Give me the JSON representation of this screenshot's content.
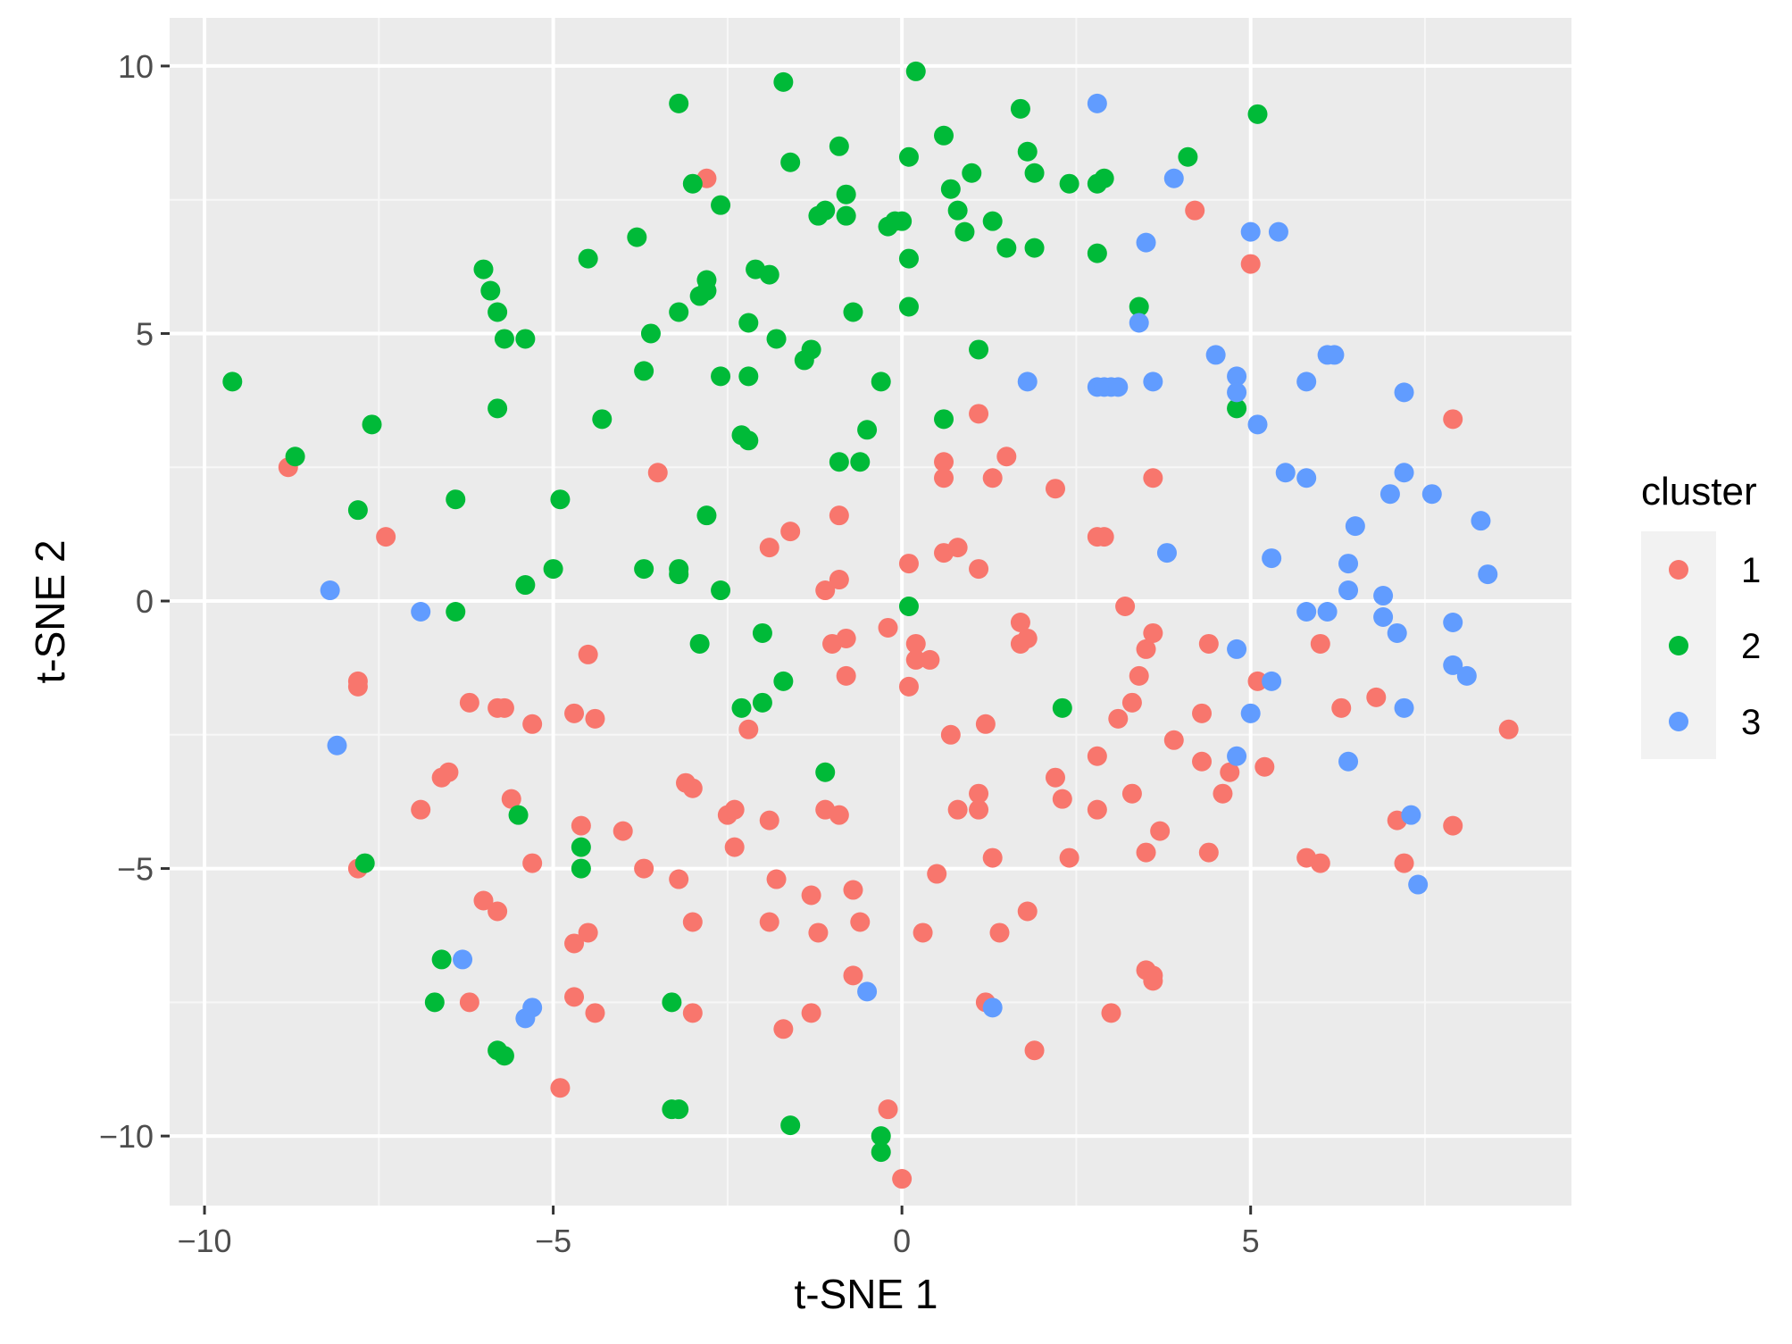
{
  "chart_data": {
    "type": "scatter",
    "title": "",
    "xlabel": "t-SNE 1",
    "ylabel": "t-SNE 2",
    "xlim": [
      -10.5,
      9.6
    ],
    "ylim": [
      -11.3,
      10.9
    ],
    "xticks": [
      -10,
      -5,
      0,
      5
    ],
    "yticks": [
      -10,
      -5,
      0,
      5,
      10
    ],
    "xtick_labels": [
      "−10",
      "−5",
      "0",
      "5"
    ],
    "ytick_labels": [
      "−10",
      "−5",
      "0",
      "5",
      "10"
    ],
    "grid": true,
    "panel_background": "#EBEBEB",
    "legend": {
      "title": "cluster",
      "position": "right",
      "entries": [
        "1",
        "2",
        "3"
      ]
    },
    "colors": {
      "1": "#F8766D",
      "2": "#00BA38",
      "3": "#619CFF"
    },
    "series": [
      {
        "name": "1",
        "color": "#F8766D",
        "points": [
          [
            -2.8,
            7.9
          ],
          [
            -8.8,
            2.5
          ],
          [
            -7.4,
            1.2
          ],
          [
            -7.8,
            -1.5
          ],
          [
            -7.8,
            -1.6
          ],
          [
            -6.9,
            -3.9
          ],
          [
            -6.6,
            -3.3
          ],
          [
            -6.5,
            -3.2
          ],
          [
            -7.8,
            -5.0
          ],
          [
            -6.2,
            -1.9
          ],
          [
            -5.8,
            -2.0
          ],
          [
            -5.7,
            -2.0
          ],
          [
            -5.3,
            -2.3
          ],
          [
            -5.6,
            -3.7
          ],
          [
            -6.0,
            -5.6
          ],
          [
            -5.8,
            -5.8
          ],
          [
            -5.3,
            -4.9
          ],
          [
            -6.2,
            -7.5
          ],
          [
            -4.9,
            -9.1
          ],
          [
            -4.7,
            -6.4
          ],
          [
            -4.7,
            -7.4
          ],
          [
            -4.7,
            -2.1
          ],
          [
            -4.6,
            -4.2
          ],
          [
            -4.5,
            -6.2
          ],
          [
            -4.4,
            -7.7
          ],
          [
            -4.4,
            -2.2
          ],
          [
            -4.5,
            -1.0
          ],
          [
            -4.0,
            -4.3
          ],
          [
            -3.7,
            -5.0
          ],
          [
            -3.5,
            2.4
          ],
          [
            -3.2,
            -5.2
          ],
          [
            -3.1,
            -3.4
          ],
          [
            -3.0,
            -3.5
          ],
          [
            -3.0,
            -6.0
          ],
          [
            -3.0,
            -7.7
          ],
          [
            -2.5,
            -4.0
          ],
          [
            -2.4,
            -3.9
          ],
          [
            -2.4,
            -4.6
          ],
          [
            -2.2,
            -2.4
          ],
          [
            -1.9,
            1.0
          ],
          [
            -1.6,
            1.3
          ],
          [
            -1.9,
            -4.1
          ],
          [
            -1.8,
            -5.2
          ],
          [
            -1.9,
            -6.0
          ],
          [
            -1.7,
            -8.0
          ],
          [
            -1.3,
            -5.5
          ],
          [
            -1.3,
            -7.7
          ],
          [
            -1.2,
            -6.2
          ],
          [
            -1.1,
            0.2
          ],
          [
            -0.9,
            0.4
          ],
          [
            -0.9,
            1.6
          ],
          [
            -1.0,
            -0.8
          ],
          [
            -0.8,
            -0.7
          ],
          [
            -0.8,
            -1.4
          ],
          [
            -1.1,
            -3.9
          ],
          [
            -0.9,
            -4.0
          ],
          [
            -0.7,
            -5.4
          ],
          [
            -0.6,
            -6.0
          ],
          [
            -0.7,
            -7.0
          ],
          [
            -0.2,
            -0.5
          ],
          [
            -0.2,
            -9.5
          ],
          [
            0.0,
            -10.8
          ],
          [
            0.1,
            0.7
          ],
          [
            0.2,
            -0.8
          ],
          [
            0.2,
            -1.1
          ],
          [
            0.4,
            -1.1
          ],
          [
            0.1,
            -1.6
          ],
          [
            0.6,
            2.3
          ],
          [
            0.6,
            2.6
          ],
          [
            0.6,
            0.9
          ],
          [
            0.8,
            1.0
          ],
          [
            0.7,
            -2.5
          ],
          [
            0.8,
            -3.9
          ],
          [
            0.5,
            -5.1
          ],
          [
            0.3,
            -6.2
          ],
          [
            1.1,
            3.5
          ],
          [
            1.3,
            2.3
          ],
          [
            1.5,
            2.7
          ],
          [
            1.1,
            0.6
          ],
          [
            1.2,
            -2.3
          ],
          [
            1.1,
            -3.6
          ],
          [
            1.1,
            -3.9
          ],
          [
            1.3,
            -4.8
          ],
          [
            1.4,
            -6.2
          ],
          [
            1.2,
            -7.5
          ],
          [
            1.7,
            -0.4
          ],
          [
            1.7,
            -0.8
          ],
          [
            1.8,
            -0.7
          ],
          [
            1.8,
            -5.8
          ],
          [
            1.9,
            -8.4
          ],
          [
            2.2,
            2.1
          ],
          [
            2.2,
            -3.3
          ],
          [
            2.3,
            -3.7
          ],
          [
            2.4,
            -4.8
          ],
          [
            2.8,
            1.2
          ],
          [
            2.9,
            1.2
          ],
          [
            2.8,
            -2.9
          ],
          [
            2.8,
            -3.9
          ],
          [
            3.0,
            -7.7
          ],
          [
            3.2,
            -0.1
          ],
          [
            3.1,
            -2.2
          ],
          [
            3.3,
            -1.9
          ],
          [
            3.3,
            -3.6
          ],
          [
            3.5,
            -0.9
          ],
          [
            3.6,
            -0.6
          ],
          [
            3.4,
            -1.4
          ],
          [
            3.5,
            -4.7
          ],
          [
            3.5,
            -6.9
          ],
          [
            3.6,
            -7.0
          ],
          [
            3.6,
            -7.1
          ],
          [
            3.6,
            2.3
          ],
          [
            3.7,
            -4.3
          ],
          [
            4.2,
            7.3
          ],
          [
            3.9,
            -2.6
          ],
          [
            4.3,
            -2.1
          ],
          [
            4.3,
            -3.0
          ],
          [
            4.4,
            -0.8
          ],
          [
            4.4,
            -4.7
          ],
          [
            4.7,
            -3.2
          ],
          [
            4.6,
            -3.6
          ],
          [
            5.0,
            6.3
          ],
          [
            5.1,
            -1.5
          ],
          [
            5.2,
            -3.1
          ],
          [
            6.0,
            -0.8
          ],
          [
            5.8,
            -4.8
          ],
          [
            6.0,
            -4.9
          ],
          [
            6.3,
            -2.0
          ],
          [
            6.8,
            -1.8
          ],
          [
            7.1,
            -4.1
          ],
          [
            7.2,
            -4.9
          ],
          [
            7.9,
            3.4
          ],
          [
            7.9,
            -4.2
          ],
          [
            8.7,
            -2.4
          ]
        ]
      },
      {
        "name": "2",
        "color": "#00BA38",
        "points": [
          [
            -9.6,
            4.1
          ],
          [
            -8.7,
            2.7
          ],
          [
            -7.6,
            3.3
          ],
          [
            -7.8,
            1.7
          ],
          [
            -6.4,
            1.9
          ],
          [
            -6.4,
            -0.2
          ],
          [
            -7.7,
            -4.9
          ],
          [
            -6.6,
            -6.7
          ],
          [
            -6.7,
            -7.5
          ],
          [
            -6.0,
            6.2
          ],
          [
            -5.9,
            5.8
          ],
          [
            -5.8,
            5.4
          ],
          [
            -5.7,
            4.9
          ],
          [
            -5.4,
            4.9
          ],
          [
            -5.8,
            3.6
          ],
          [
            -5.4,
            0.3
          ],
          [
            -5.5,
            -4.0
          ],
          [
            -5.8,
            -8.4
          ],
          [
            -5.7,
            -8.5
          ],
          [
            -4.5,
            6.4
          ],
          [
            -4.3,
            3.4
          ],
          [
            -4.9,
            1.9
          ],
          [
            -5.0,
            0.6
          ],
          [
            -4.6,
            -4.6
          ],
          [
            -4.6,
            -5.0
          ],
          [
            -3.8,
            6.8
          ],
          [
            -3.6,
            5.0
          ],
          [
            -3.7,
            4.3
          ],
          [
            -3.7,
            0.6
          ],
          [
            -3.2,
            9.3
          ],
          [
            -3.0,
            7.8
          ],
          [
            -3.2,
            5.4
          ],
          [
            -2.9,
            5.7
          ],
          [
            -2.8,
            5.8
          ],
          [
            -2.8,
            6.0
          ],
          [
            -2.6,
            7.4
          ],
          [
            -2.6,
            4.2
          ],
          [
            -3.2,
            0.6
          ],
          [
            -3.2,
            0.5
          ],
          [
            -2.8,
            1.6
          ],
          [
            -2.6,
            0.2
          ],
          [
            -2.3,
            3.1
          ],
          [
            -2.2,
            3.0
          ],
          [
            -2.9,
            -0.8
          ],
          [
            -3.3,
            -7.5
          ],
          [
            -3.3,
            -9.5
          ],
          [
            -3.2,
            -9.5
          ],
          [
            -2.1,
            6.2
          ],
          [
            -2.2,
            5.2
          ],
          [
            -2.2,
            4.2
          ],
          [
            -1.9,
            6.1
          ],
          [
            -1.8,
            4.9
          ],
          [
            -1.7,
            9.7
          ],
          [
            -1.6,
            8.2
          ],
          [
            -1.4,
            4.5
          ],
          [
            -1.3,
            4.7
          ],
          [
            -2.0,
            -0.6
          ],
          [
            -2.3,
            -2.0
          ],
          [
            -2.0,
            -1.9
          ],
          [
            -1.7,
            -1.5
          ],
          [
            -1.6,
            -9.8
          ],
          [
            -1.2,
            7.2
          ],
          [
            -1.1,
            7.3
          ],
          [
            -0.9,
            8.5
          ],
          [
            -0.8,
            7.6
          ],
          [
            -0.8,
            7.2
          ],
          [
            -0.7,
            5.4
          ],
          [
            -0.9,
            2.6
          ],
          [
            -0.5,
            3.2
          ],
          [
            -0.6,
            2.6
          ],
          [
            -1.1,
            -3.2
          ],
          [
            -0.2,
            7.0
          ],
          [
            -0.1,
            7.1
          ],
          [
            0.0,
            7.1
          ],
          [
            0.2,
            9.9
          ],
          [
            0.1,
            8.3
          ],
          [
            0.1,
            6.4
          ],
          [
            0.1,
            5.5
          ],
          [
            -0.3,
            4.1
          ],
          [
            0.1,
            -0.1
          ],
          [
            -0.3,
            -10.0
          ],
          [
            -0.3,
            -10.3
          ],
          [
            0.6,
            8.7
          ],
          [
            0.7,
            7.7
          ],
          [
            0.8,
            7.3
          ],
          [
            0.9,
            6.9
          ],
          [
            1.0,
            8.0
          ],
          [
            1.1,
            4.7
          ],
          [
            0.6,
            3.4
          ],
          [
            1.3,
            7.1
          ],
          [
            1.5,
            6.6
          ],
          [
            1.7,
            9.2
          ],
          [
            1.8,
            8.4
          ],
          [
            1.9,
            8.0
          ],
          [
            1.9,
            6.6
          ],
          [
            2.4,
            7.8
          ],
          [
            2.8,
            7.8
          ],
          [
            2.9,
            7.9
          ],
          [
            2.8,
            6.5
          ],
          [
            3.4,
            5.5
          ],
          [
            4.1,
            8.3
          ],
          [
            5.1,
            9.1
          ],
          [
            4.8,
            3.6
          ],
          [
            2.3,
            -2.0
          ]
        ]
      },
      {
        "name": "3",
        "color": "#619CFF",
        "points": [
          [
            -8.2,
            0.2
          ],
          [
            -6.9,
            -0.2
          ],
          [
            -8.1,
            -2.7
          ],
          [
            -6.3,
            -6.7
          ],
          [
            -5.4,
            -7.8
          ],
          [
            -5.3,
            -7.6
          ],
          [
            -0.5,
            -7.3
          ],
          [
            1.3,
            -7.6
          ],
          [
            2.8,
            9.3
          ],
          [
            3.9,
            7.9
          ],
          [
            3.5,
            6.7
          ],
          [
            3.4,
            5.2
          ],
          [
            1.8,
            4.1
          ],
          [
            2.8,
            4.0
          ],
          [
            2.9,
            4.0
          ],
          [
            3.0,
            4.0
          ],
          [
            3.1,
            4.0
          ],
          [
            3.6,
            4.1
          ],
          [
            3.8,
            0.9
          ],
          [
            4.5,
            4.6
          ],
          [
            4.8,
            4.2
          ],
          [
            4.8,
            3.9
          ],
          [
            5.0,
            6.9
          ],
          [
            5.1,
            3.3
          ],
          [
            5.4,
            6.9
          ],
          [
            5.5,
            2.4
          ],
          [
            5.8,
            2.3
          ],
          [
            5.3,
            0.8
          ],
          [
            4.8,
            -0.9
          ],
          [
            5.0,
            -2.1
          ],
          [
            5.3,
            -1.5
          ],
          [
            4.8,
            -2.9
          ],
          [
            5.8,
            4.1
          ],
          [
            6.1,
            4.6
          ],
          [
            6.2,
            4.6
          ],
          [
            6.5,
            1.4
          ],
          [
            6.4,
            0.7
          ],
          [
            6.4,
            0.2
          ],
          [
            5.8,
            -0.2
          ],
          [
            6.1,
            -0.2
          ],
          [
            6.4,
            -3.0
          ],
          [
            6.9,
            0.1
          ],
          [
            6.9,
            -0.3
          ],
          [
            7.0,
            2.0
          ],
          [
            7.2,
            2.4
          ],
          [
            7.1,
            -0.6
          ],
          [
            7.2,
            3.9
          ],
          [
            7.6,
            2.0
          ],
          [
            7.2,
            -2.0
          ],
          [
            7.3,
            -4.0
          ],
          [
            7.4,
            -5.3
          ],
          [
            7.9,
            -0.4
          ],
          [
            7.9,
            -1.2
          ],
          [
            8.1,
            -1.4
          ],
          [
            8.3,
            1.5
          ],
          [
            8.4,
            0.5
          ]
        ]
      }
    ]
  }
}
